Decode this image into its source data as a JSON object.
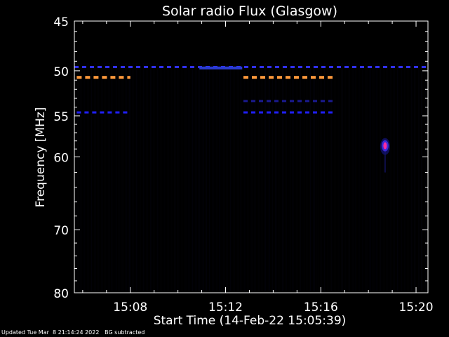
{
  "chart_data": {
    "type": "heatmap",
    "title": "Solar radio Flux (Glasgow)",
    "xlabel": "Start Time (14-Feb-22 15:05:39)",
    "ylabel": "Frequency [MHz]",
    "x_axis": {
      "unit": "minutes after 15:00 UT",
      "range": [
        5.65,
        20.5
      ],
      "ticks": [
        8,
        12,
        16,
        20
      ],
      "tick_labels": [
        "15:08",
        "15:12",
        "15:16",
        "15:20"
      ]
    },
    "y_axis": {
      "unit": "MHz",
      "scale": "log",
      "inverted": true,
      "range": [
        45,
        80
      ],
      "ticks": [
        45,
        50,
        55,
        60,
        70,
        80
      ],
      "tick_labels": [
        "45",
        "50",
        "55",
        "60",
        "70",
        "80"
      ]
    },
    "features": [
      {
        "kind": "interference band",
        "freq": 49.6,
        "x_start": 5.65,
        "x_end": 20.5,
        "color": "#3030ff",
        "dashed": true
      },
      {
        "kind": "interference band",
        "freq": 49.7,
        "x_start": 10.9,
        "x_end": 12.7,
        "color": "#2a3cd0",
        "dashed": false
      },
      {
        "kind": "interference band",
        "freq": 50.7,
        "x_start": 5.75,
        "x_end": 8.0,
        "color": "#ff9a3c",
        "dashed": true
      },
      {
        "kind": "interference band",
        "freq": 50.7,
        "x_start": 12.75,
        "x_end": 16.55,
        "color": "#ff9a3c",
        "dashed": true
      },
      {
        "kind": "interference band",
        "freq": 53.3,
        "x_start": 12.75,
        "x_end": 16.55,
        "color": "#1a1a90",
        "dashed": true
      },
      {
        "kind": "interference band",
        "freq": 54.6,
        "x_start": 5.75,
        "x_end": 8.0,
        "color": "#2020ff",
        "dashed": true
      },
      {
        "kind": "interference band",
        "freq": 54.6,
        "x_start": 12.75,
        "x_end": 16.55,
        "color": "#2020ff",
        "dashed": true
      },
      {
        "kind": "burst",
        "freq": 58.6,
        "x": 18.7,
        "color": "#ff2aa0"
      }
    ]
  },
  "footer": {
    "updated": "Updated Tue Mar  8 21:14:24 2022",
    "note": "BG subtracted"
  }
}
